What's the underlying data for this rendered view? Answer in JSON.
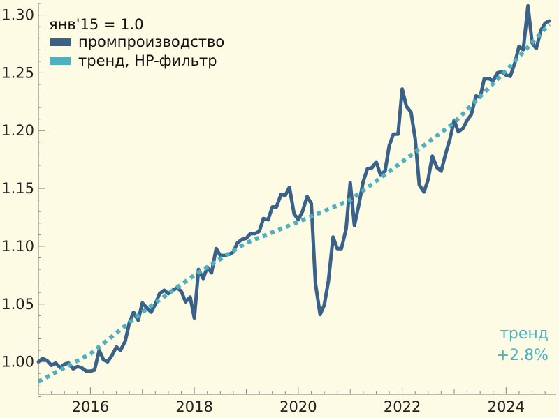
{
  "chart_data": {
    "type": "line",
    "title": "",
    "xlabel": "",
    "ylabel": "",
    "xlim": [
      2015.0,
      2024.95
    ],
    "ylim": [
      0.972,
      1.31
    ],
    "x_ticks": [
      2016,
      2018,
      2020,
      2022,
      2024
    ],
    "x_tick_labels": [
      "2016",
      "2018",
      "2020",
      "2022",
      "2024"
    ],
    "y_ticks": [
      1.0,
      1.05,
      1.1,
      1.15,
      1.2,
      1.25,
      1.3
    ],
    "y_tick_labels": [
      "1.00",
      "1.05",
      "1.10",
      "1.15",
      "1.20",
      "1.25",
      "1.30"
    ],
    "legend": {
      "placement": "top-left",
      "title": "янв'15 = 1.0",
      "entries": [
        "промпроизводство",
        "тренд, HP-фильтр"
      ]
    },
    "series": [
      {
        "name": "промпроизводство",
        "style": "solid",
        "color": "#3a6189",
        "points": [
          [
            2015.0,
            1.0
          ],
          [
            2015.08,
            1.003
          ],
          [
            2015.17,
            1.001
          ],
          [
            2015.25,
            0.997
          ],
          [
            2015.33,
            0.999
          ],
          [
            2015.42,
            0.995
          ],
          [
            2015.5,
            0.998
          ],
          [
            2015.58,
            0.999
          ],
          [
            2015.67,
            0.994
          ],
          [
            2015.75,
            0.996
          ],
          [
            2015.83,
            0.995
          ],
          [
            2015.92,
            0.992
          ],
          [
            2016.0,
            0.992
          ],
          [
            2016.08,
            0.993
          ],
          [
            2016.17,
            1.01
          ],
          [
            2016.25,
            1.002
          ],
          [
            2016.33,
            1.0
          ],
          [
            2016.42,
            1.006
          ],
          [
            2016.5,
            1.013
          ],
          [
            2016.58,
            1.01
          ],
          [
            2016.67,
            1.018
          ],
          [
            2016.75,
            1.034
          ],
          [
            2016.83,
            1.043
          ],
          [
            2016.92,
            1.036
          ],
          [
            2017.0,
            1.051
          ],
          [
            2017.08,
            1.047
          ],
          [
            2017.17,
            1.043
          ],
          [
            2017.25,
            1.05
          ],
          [
            2017.33,
            1.059
          ],
          [
            2017.42,
            1.062
          ],
          [
            2017.5,
            1.059
          ],
          [
            2017.58,
            1.062
          ],
          [
            2017.67,
            1.064
          ],
          [
            2017.75,
            1.061
          ],
          [
            2017.83,
            1.052
          ],
          [
            2017.92,
            1.056
          ],
          [
            2018.0,
            1.038
          ],
          [
            2018.08,
            1.08
          ],
          [
            2018.17,
            1.072
          ],
          [
            2018.25,
            1.082
          ],
          [
            2018.33,
            1.077
          ],
          [
            2018.42,
            1.098
          ],
          [
            2018.5,
            1.092
          ],
          [
            2018.58,
            1.092
          ],
          [
            2018.67,
            1.093
          ],
          [
            2018.75,
            1.095
          ],
          [
            2018.83,
            1.103
          ],
          [
            2018.92,
            1.106
          ],
          [
            2019.0,
            1.107
          ],
          [
            2019.08,
            1.111
          ],
          [
            2019.17,
            1.111
          ],
          [
            2019.25,
            1.113
          ],
          [
            2019.33,
            1.124
          ],
          [
            2019.42,
            1.123
          ],
          [
            2019.5,
            1.134
          ],
          [
            2019.58,
            1.134
          ],
          [
            2019.67,
            1.145
          ],
          [
            2019.75,
            1.144
          ],
          [
            2019.83,
            1.151
          ],
          [
            2019.92,
            1.128
          ],
          [
            2020.0,
            1.123
          ],
          [
            2020.08,
            1.13
          ],
          [
            2020.17,
            1.143
          ],
          [
            2020.25,
            1.137
          ],
          [
            2020.33,
            1.068
          ],
          [
            2020.42,
            1.041
          ],
          [
            2020.5,
            1.049
          ],
          [
            2020.58,
            1.07
          ],
          [
            2020.67,
            1.108
          ],
          [
            2020.75,
            1.098
          ],
          [
            2020.83,
            1.098
          ],
          [
            2020.92,
            1.115
          ],
          [
            2021.0,
            1.155
          ],
          [
            2021.08,
            1.118
          ],
          [
            2021.17,
            1.137
          ],
          [
            2021.25,
            1.156
          ],
          [
            2021.33,
            1.167
          ],
          [
            2021.42,
            1.168
          ],
          [
            2021.5,
            1.173
          ],
          [
            2021.58,
            1.162
          ],
          [
            2021.67,
            1.165
          ],
          [
            2021.75,
            1.187
          ],
          [
            2021.83,
            1.197
          ],
          [
            2021.92,
            1.197
          ],
          [
            2022.0,
            1.236
          ],
          [
            2022.08,
            1.221
          ],
          [
            2022.17,
            1.216
          ],
          [
            2022.25,
            1.193
          ],
          [
            2022.33,
            1.153
          ],
          [
            2022.42,
            1.147
          ],
          [
            2022.5,
            1.158
          ],
          [
            2022.58,
            1.178
          ],
          [
            2022.67,
            1.168
          ],
          [
            2022.75,
            1.165
          ],
          [
            2022.83,
            1.179
          ],
          [
            2022.92,
            1.193
          ],
          [
            2023.0,
            1.209
          ],
          [
            2023.08,
            1.199
          ],
          [
            2023.17,
            1.202
          ],
          [
            2023.25,
            1.209
          ],
          [
            2023.33,
            1.214
          ],
          [
            2023.42,
            1.23
          ],
          [
            2023.5,
            1.229
          ],
          [
            2023.58,
            1.245
          ],
          [
            2023.67,
            1.245
          ],
          [
            2023.75,
            1.243
          ],
          [
            2023.83,
            1.25
          ],
          [
            2023.92,
            1.251
          ],
          [
            2024.0,
            1.248
          ],
          [
            2024.08,
            1.247
          ],
          [
            2024.17,
            1.259
          ],
          [
            2024.25,
            1.273
          ],
          [
            2024.33,
            1.27
          ],
          [
            2024.42,
            1.308
          ],
          [
            2024.5,
            1.276
          ],
          [
            2024.58,
            1.271
          ],
          [
            2024.67,
            1.287
          ],
          [
            2024.75,
            1.293
          ],
          [
            2024.83,
            1.295
          ]
        ]
      },
      {
        "name": "тренд, HP-фильтр",
        "style": "dotted",
        "color": "#4fb0c0",
        "points": [
          [
            2015.0,
            0.983
          ],
          [
            2016.0,
            1.007
          ],
          [
            2017.0,
            1.043
          ],
          [
            2018.0,
            1.075
          ],
          [
            2019.0,
            1.103
          ],
          [
            2020.0,
            1.121
          ],
          [
            2021.0,
            1.14
          ],
          [
            2022.0,
            1.173
          ],
          [
            2023.0,
            1.207
          ],
          [
            2024.0,
            1.252
          ],
          [
            2024.83,
            1.292
          ]
        ]
      }
    ],
    "annotation": {
      "lines": [
        "тренд",
        "+2.8%"
      ],
      "color": "#4fb0c0",
      "placement": "bottom-right"
    }
  }
}
